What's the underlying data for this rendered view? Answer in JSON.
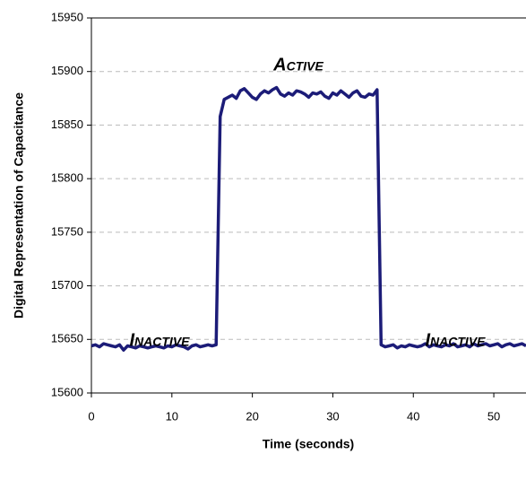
{
  "chart_data": {
    "type": "line",
    "x_label": "Time (seconds)",
    "y_label": "Digital Representation of Capacitance",
    "annotations": [
      "Inactive",
      "Active",
      "Inactive"
    ],
    "x": [
      0,
      0.5,
      1,
      1.5,
      2,
      2.5,
      3,
      3.5,
      4,
      4.5,
      5,
      5.5,
      6,
      6.5,
      7,
      7.5,
      8,
      8.5,
      9,
      9.5,
      10,
      10.5,
      11,
      11.5,
      12,
      12.5,
      13,
      13.5,
      14,
      14.5,
      15,
      15.5,
      16,
      16.5,
      17,
      17.5,
      18,
      18.5,
      19,
      19.5,
      20,
      20.5,
      21,
      21.5,
      22,
      22.5,
      23,
      23.5,
      24,
      24.5,
      25,
      25.5,
      26,
      26.5,
      27,
      27.5,
      28,
      28.5,
      29,
      29.5,
      30,
      30.5,
      31,
      31.5,
      32,
      32.5,
      33,
      33.5,
      34,
      34.5,
      35,
      35.5,
      36,
      36.5,
      37,
      37.5,
      38,
      38.5,
      39,
      39.5,
      40,
      40.5,
      41,
      41.5,
      42,
      42.5,
      43,
      43.5,
      44,
      44.5,
      45,
      45.5,
      46,
      46.5,
      47,
      47.5,
      48,
      48.5,
      49,
      49.5,
      50,
      50.5,
      51,
      51.5,
      52,
      52.5,
      53,
      53.5,
      54
    ],
    "series": [
      {
        "color": "#1c1c78",
        "values": [
          15644,
          15645,
          15643,
          15646,
          15645,
          15644,
          15643,
          15645,
          15640,
          15644,
          15643,
          15642,
          15644,
          15643,
          15642,
          15643,
          15644,
          15643,
          15642,
          15644,
          15643,
          15645,
          15644,
          15643,
          15641,
          15644,
          15645,
          15643,
          15644,
          15645,
          15644,
          15645,
          15858,
          15874,
          15876,
          15878,
          15875,
          15882,
          15884,
          15880,
          15876,
          15874,
          15879,
          15882,
          15880,
          15883,
          15885,
          15879,
          15877,
          15880,
          15878,
          15882,
          15881,
          15879,
          15876,
          15880,
          15879,
          15881,
          15877,
          15875,
          15880,
          15878,
          15882,
          15879,
          15876,
          15880,
          15882,
          15877,
          15876,
          15879,
          15878,
          15883,
          15645,
          15643,
          15644,
          15645,
          15642,
          15644,
          15643,
          15645,
          15644,
          15643,
          15644,
          15646,
          15643,
          15645,
          15644,
          15643,
          15645,
          15644,
          15646,
          15643,
          15644,
          15645,
          15643,
          15646,
          15644,
          15645,
          15646,
          15644,
          15645,
          15646,
          15643,
          15645,
          15646,
          15644,
          15645,
          15646,
          15644
        ]
      }
    ],
    "xlim": [
      0,
      54
    ],
    "xticks": [
      0,
      10,
      20,
      30,
      40,
      50
    ],
    "ylim": [
      15600,
      15950
    ],
    "yticks": [
      15600,
      15650,
      15700,
      15750,
      15800,
      15850,
      15900,
      15950
    ],
    "grid": true
  }
}
